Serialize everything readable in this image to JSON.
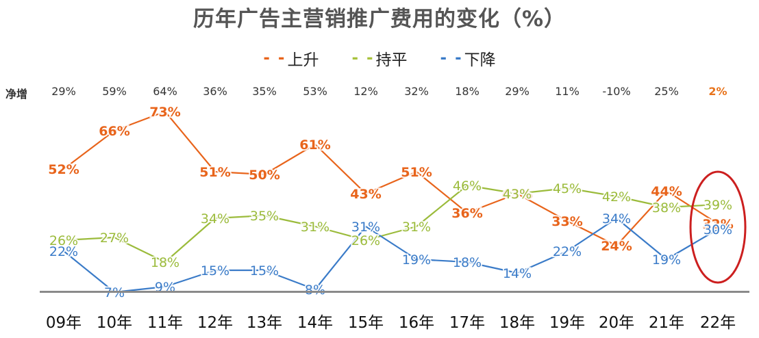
{
  "chart_data": {
    "type": "line",
    "title": "历年广告主营销推广费用的变化（%）",
    "xlabel": "",
    "ylabel": "",
    "categories": [
      "09年",
      "10年",
      "11年",
      "12年",
      "13年",
      "14年",
      "15年",
      "16年",
      "17年",
      "18年",
      "19年",
      "20年",
      "21年",
      "22年"
    ],
    "series": [
      {
        "name": "上升",
        "color": "#e8641b",
        "values": [
          52,
          66,
          73,
          51,
          50,
          61,
          43,
          51,
          36,
          43,
          33,
          24,
          44,
          32
        ]
      },
      {
        "name": "持平",
        "color": "#9bbb3b",
        "values": [
          26,
          27,
          18,
          34,
          35,
          31,
          26,
          31,
          46,
          43,
          45,
          42,
          38,
          39
        ]
      },
      {
        "name": "下降",
        "color": "#3a7bc8",
        "values": [
          22,
          7,
          9,
          15,
          15,
          8,
          31,
          19,
          18,
          14,
          22,
          34,
          19,
          30
        ]
      }
    ],
    "net_increase": {
      "label": "净增",
      "values": [
        "29%",
        "59%",
        "64%",
        "36%",
        "35%",
        "53%",
        "12%",
        "32%",
        "18%",
        "29%",
        "11%",
        "-10%",
        "25%",
        "2%"
      ],
      "highlight_index": 13,
      "highlight_color": "#e8731b"
    },
    "annotations": [
      {
        "type": "ellipse",
        "target": "22年",
        "color": "#cc1f1f"
      }
    ],
    "legend_position": "top",
    "grid": false
  },
  "title": "历年广告主营销推广费用的变化（%）",
  "legend": [
    {
      "dash": "- -",
      "label": "上升",
      "color": "#e8641b"
    },
    {
      "dash": "- -",
      "label": "持平",
      "color": "#a8c23c"
    },
    {
      "dash": "- -",
      "label": "下降",
      "color": "#3a7bc8"
    }
  ],
  "net_row": {
    "label": "净增"
  }
}
